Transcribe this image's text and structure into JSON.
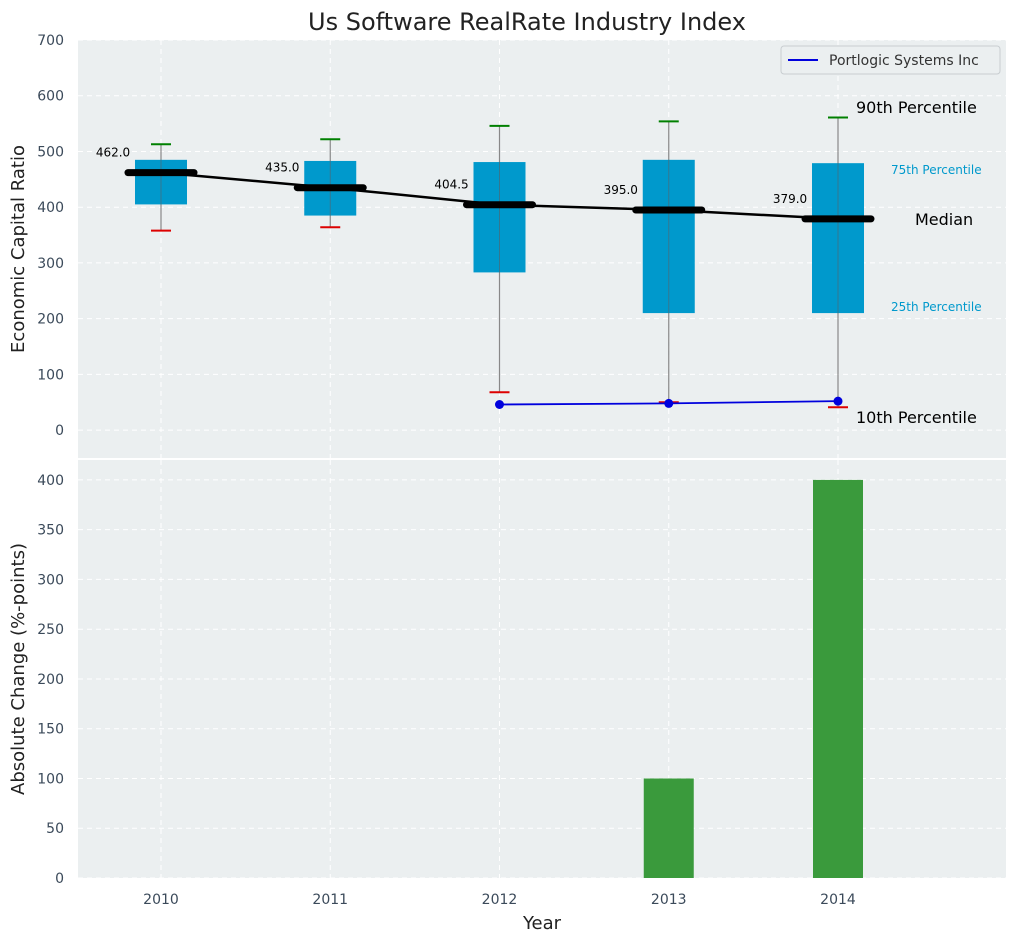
{
  "chart_data": [
    {
      "type": "box",
      "title": "Us Software RealRate Industry Index",
      "ylabel": "Economic Capital Ratio",
      "xlabel": "",
      "ylim": [
        -50,
        700
      ],
      "yticks": [
        0,
        100,
        200,
        300,
        400,
        500,
        600,
        700
      ],
      "categories": [
        "2010",
        "2011",
        "2012",
        "2013",
        "2014"
      ],
      "grid": true,
      "legend": {
        "position": "top-right",
        "entries": [
          "Portlogic Systems Inc"
        ]
      },
      "series": [
        {
          "kind": "box",
          "p10": [
            358,
            364,
            68,
            50,
            41
          ],
          "p25": [
            405,
            385,
            283,
            210,
            210
          ],
          "median": [
            462.0,
            435.0,
            404.5,
            395.0,
            379.0
          ],
          "p75": [
            485,
            483,
            481,
            485,
            479
          ],
          "p90": [
            513,
            522,
            546,
            554,
            561
          ]
        },
        {
          "kind": "line",
          "name": "Portlogic Systems Inc",
          "x": [
            "2012",
            "2013",
            "2014"
          ],
          "values": [
            46,
            48,
            52
          ]
        }
      ],
      "median_labels": [
        "462.0",
        "435.0",
        "404.5",
        "395.0",
        "379.0"
      ],
      "annotations": {
        "p90": "90th Percentile",
        "p75": "75th Percentile",
        "median": "Median",
        "p25": "25th Percentile",
        "p10": "10th Percentile"
      },
      "colors": {
        "box": "#0099cc",
        "median_line": "#000000",
        "company_line": "#0000dd",
        "p90_cap": "#008000",
        "p10_cap": "#dd0000",
        "background": "#ebeff0"
      }
    },
    {
      "type": "bar",
      "ylabel": "Absolute Change (%-points)",
      "xlabel": "Year",
      "ylim": [
        0,
        420
      ],
      "yticks": [
        0,
        50,
        100,
        150,
        200,
        250,
        300,
        350,
        400
      ],
      "categories": [
        "2010",
        "2011",
        "2012",
        "2013",
        "2014"
      ],
      "values": [
        0,
        0,
        0,
        100,
        400
      ],
      "grid": true,
      "colors": {
        "bar": "#3a9a3c",
        "background": "#ebeff0"
      }
    }
  ]
}
